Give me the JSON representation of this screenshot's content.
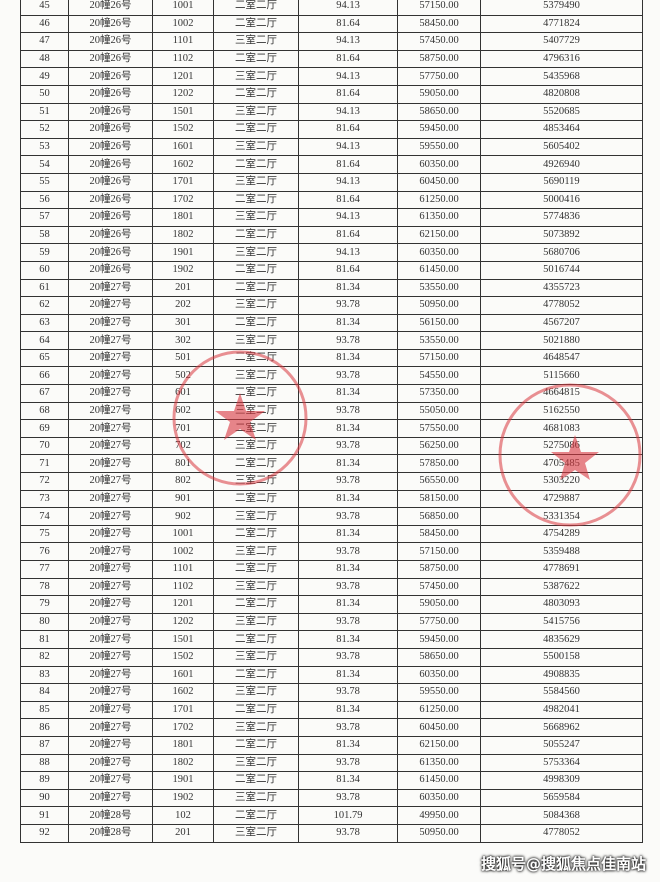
{
  "table": {
    "rows": [
      [
        "45",
        "20幢26号",
        "1001",
        "二室二厅",
        "94.13",
        "57150.00",
        "5379490"
      ],
      [
        "46",
        "20幢26号",
        "1002",
        "二室二厅",
        "81.64",
        "58450.00",
        "4771824"
      ],
      [
        "47",
        "20幢26号",
        "1101",
        "三室二厅",
        "94.13",
        "57450.00",
        "5407729"
      ],
      [
        "48",
        "20幢26号",
        "1102",
        "二室二厅",
        "81.64",
        "58750.00",
        "4796316"
      ],
      [
        "49",
        "20幢26号",
        "1201",
        "三室二厅",
        "94.13",
        "57750.00",
        "5435968"
      ],
      [
        "50",
        "20幢26号",
        "1202",
        "二室二厅",
        "81.64",
        "59050.00",
        "4820808"
      ],
      [
        "51",
        "20幢26号",
        "1501",
        "三室二厅",
        "94.13",
        "58650.00",
        "5520685"
      ],
      [
        "52",
        "20幢26号",
        "1502",
        "二室二厅",
        "81.64",
        "59450.00",
        "4853464"
      ],
      [
        "53",
        "20幢26号",
        "1601",
        "三室二厅",
        "94.13",
        "59550.00",
        "5605402"
      ],
      [
        "54",
        "20幢26号",
        "1602",
        "二室二厅",
        "81.64",
        "60350.00",
        "4926940"
      ],
      [
        "55",
        "20幢26号",
        "1701",
        "三室二厅",
        "94.13",
        "60450.00",
        "5690119"
      ],
      [
        "56",
        "20幢26号",
        "1702",
        "二室二厅",
        "81.64",
        "61250.00",
        "5000416"
      ],
      [
        "57",
        "20幢26号",
        "1801",
        "三室二厅",
        "94.13",
        "61350.00",
        "5774836"
      ],
      [
        "58",
        "20幢26号",
        "1802",
        "二室二厅",
        "81.64",
        "62150.00",
        "5073892"
      ],
      [
        "59",
        "20幢26号",
        "1901",
        "三室二厅",
        "94.13",
        "60350.00",
        "5680706"
      ],
      [
        "60",
        "20幢26号",
        "1902",
        "二室二厅",
        "81.64",
        "61450.00",
        "5016744"
      ],
      [
        "61",
        "20幢27号",
        "201",
        "二室二厅",
        "81.34",
        "53550.00",
        "4355723"
      ],
      [
        "62",
        "20幢27号",
        "202",
        "三室二厅",
        "93.78",
        "50950.00",
        "4778052"
      ],
      [
        "63",
        "20幢27号",
        "301",
        "二室二厅",
        "81.34",
        "56150.00",
        "4567207"
      ],
      [
        "64",
        "20幢27号",
        "302",
        "三室二厅",
        "93.78",
        "53550.00",
        "5021880"
      ],
      [
        "65",
        "20幢27号",
        "501",
        "二室二厅",
        "81.34",
        "57150.00",
        "4648547"
      ],
      [
        "66",
        "20幢27号",
        "502",
        "三室二厅",
        "93.78",
        "54550.00",
        "5115660"
      ],
      [
        "67",
        "20幢27号",
        "601",
        "二室二厅",
        "81.34",
        "57350.00",
        "4664815"
      ],
      [
        "68",
        "20幢27号",
        "602",
        "三室二厅",
        "93.78",
        "55050.00",
        "5162550"
      ],
      [
        "69",
        "20幢27号",
        "701",
        "二室二厅",
        "81.34",
        "57550.00",
        "4681083"
      ],
      [
        "70",
        "20幢27号",
        "702",
        "三室二厅",
        "93.78",
        "56250.00",
        "5275086"
      ],
      [
        "71",
        "20幢27号",
        "801",
        "二室二厅",
        "81.34",
        "57850.00",
        "4705485"
      ],
      [
        "72",
        "20幢27号",
        "802",
        "三室二厅",
        "93.78",
        "56550.00",
        "5303220"
      ],
      [
        "73",
        "20幢27号",
        "901",
        "二室二厅",
        "81.34",
        "58150.00",
        "4729887"
      ],
      [
        "74",
        "20幢27号",
        "902",
        "三室二厅",
        "93.78",
        "56850.00",
        "5331354"
      ],
      [
        "75",
        "20幢27号",
        "1001",
        "二室二厅",
        "81.34",
        "58450.00",
        "4754289"
      ],
      [
        "76",
        "20幢27号",
        "1002",
        "三室二厅",
        "93.78",
        "57150.00",
        "5359488"
      ],
      [
        "77",
        "20幢27号",
        "1101",
        "二室二厅",
        "81.34",
        "58750.00",
        "4778691"
      ],
      [
        "78",
        "20幢27号",
        "1102",
        "三室二厅",
        "93.78",
        "57450.00",
        "5387622"
      ],
      [
        "79",
        "20幢27号",
        "1201",
        "二室二厅",
        "81.34",
        "59050.00",
        "4803093"
      ],
      [
        "80",
        "20幢27号",
        "1202",
        "三室二厅",
        "93.78",
        "57750.00",
        "5415756"
      ],
      [
        "81",
        "20幢27号",
        "1501",
        "二室二厅",
        "81.34",
        "59450.00",
        "4835629"
      ],
      [
        "82",
        "20幢27号",
        "1502",
        "三室二厅",
        "93.78",
        "58650.00",
        "5500158"
      ],
      [
        "83",
        "20幢27号",
        "1601",
        "二室二厅",
        "81.34",
        "60350.00",
        "4908835"
      ],
      [
        "84",
        "20幢27号",
        "1602",
        "三室二厅",
        "93.78",
        "59550.00",
        "5584560"
      ],
      [
        "85",
        "20幢27号",
        "1701",
        "二室二厅",
        "81.34",
        "61250.00",
        "4982041"
      ],
      [
        "86",
        "20幢27号",
        "1702",
        "三室二厅",
        "93.78",
        "60450.00",
        "5668962"
      ],
      [
        "87",
        "20幢27号",
        "1801",
        "二室二厅",
        "81.34",
        "62150.00",
        "5055247"
      ],
      [
        "88",
        "20幢27号",
        "1802",
        "三室二厅",
        "93.78",
        "61350.00",
        "5753364"
      ],
      [
        "89",
        "20幢27号",
        "1901",
        "二室二厅",
        "81.34",
        "61450.00",
        "4998309"
      ],
      [
        "90",
        "20幢27号",
        "1902",
        "三室二厅",
        "93.78",
        "60350.00",
        "5659584"
      ],
      [
        "91",
        "20幢28号",
        "102",
        "二室二厅",
        "101.79",
        "49950.00",
        "5084368"
      ],
      [
        "92",
        "20幢28号",
        "201",
        "三室二厅",
        "93.78",
        "50950.00",
        "4778052"
      ]
    ]
  },
  "watermark": "搜狐号@搜狐焦点佳南站"
}
